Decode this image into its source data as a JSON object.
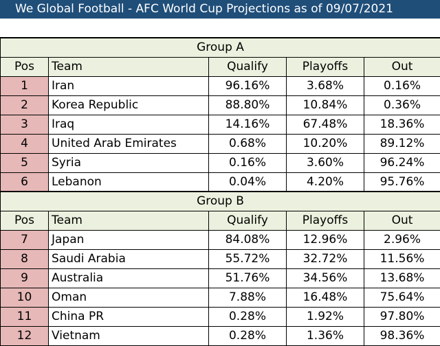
{
  "title": "We Global Football - AFC World Cup Projections as of 09/07/2021",
  "columns": {
    "pos": "Pos",
    "team": "Team",
    "qualify": "Qualify",
    "playoffs": "Playoffs",
    "out": "Out"
  },
  "groups": [
    {
      "name": "Group A",
      "rows": [
        {
          "pos": "1",
          "team": "Iran",
          "qualify": "96.16%",
          "playoffs": "3.68%",
          "out": "0.16%"
        },
        {
          "pos": "2",
          "team": "Korea Republic",
          "qualify": "88.80%",
          "playoffs": "10.84%",
          "out": "0.36%"
        },
        {
          "pos": "3",
          "team": "Iraq",
          "qualify": "14.16%",
          "playoffs": "67.48%",
          "out": "18.36%"
        },
        {
          "pos": "4",
          "team": "United Arab Emirates",
          "qualify": "0.68%",
          "playoffs": "10.20%",
          "out": "89.12%"
        },
        {
          "pos": "5",
          "team": "Syria",
          "qualify": "0.16%",
          "playoffs": "3.60%",
          "out": "96.24%"
        },
        {
          "pos": "6",
          "team": "Lebanon",
          "qualify": "0.04%",
          "playoffs": "4.20%",
          "out": "95.76%"
        }
      ]
    },
    {
      "name": "Group B",
      "rows": [
        {
          "pos": "7",
          "team": "Japan",
          "qualify": "84.08%",
          "playoffs": "12.96%",
          "out": "2.96%"
        },
        {
          "pos": "8",
          "team": "Saudi Arabia",
          "qualify": "55.72%",
          "playoffs": "32.72%",
          "out": "11.56%"
        },
        {
          "pos": "9",
          "team": "Australia",
          "qualify": "51.76%",
          "playoffs": "34.56%",
          "out": "13.68%"
        },
        {
          "pos": "10",
          "team": "Oman",
          "qualify": "7.88%",
          "playoffs": "16.48%",
          "out": "75.64%"
        },
        {
          "pos": "11",
          "team": "China PR",
          "qualify": "0.28%",
          "playoffs": "1.92%",
          "out": "97.80%"
        },
        {
          "pos": "12",
          "team": "Vietnam",
          "qualify": "0.28%",
          "playoffs": "1.36%",
          "out": "98.36%"
        }
      ]
    }
  ]
}
